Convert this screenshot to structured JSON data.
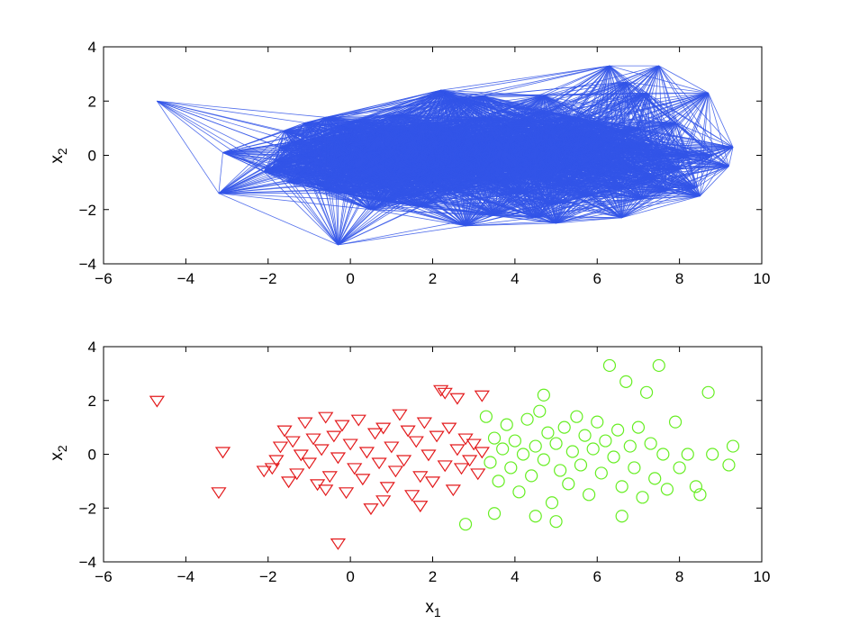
{
  "chart_data": [
    {
      "type": "network",
      "title": "",
      "xlabel": "",
      "ylabel": "x2",
      "ylabel_main": "x",
      "ylabel_sub": "2",
      "xlim": [
        -6,
        10
      ],
      "ylim": [
        -4,
        4
      ],
      "xticks": [
        -6,
        -4,
        -2,
        0,
        2,
        4,
        6,
        8,
        10
      ],
      "yticks": [
        -4,
        -2,
        0,
        2,
        4
      ],
      "xtick_labels": [
        "−6",
        "−4",
        "−2",
        "0",
        "2",
        "4",
        "6",
        "8",
        "10"
      ],
      "ytick_labels": [
        "−4",
        "−2",
        "0",
        "2",
        "4"
      ],
      "edge_color": "#3355e8",
      "grid": false,
      "legend": "none"
    },
    {
      "type": "scatter",
      "title": "",
      "xlabel": "x1",
      "xlabel_main": "x",
      "xlabel_sub": "1",
      "ylabel": "x2",
      "ylabel_main": "x",
      "ylabel_sub": "2",
      "xlim": [
        -6,
        10
      ],
      "ylim": [
        -4,
        4
      ],
      "xticks": [
        -6,
        -4,
        -2,
        0,
        2,
        4,
        6,
        8,
        10
      ],
      "yticks": [
        -4,
        -2,
        0,
        2,
        4
      ],
      "xtick_labels": [
        "−6",
        "−4",
        "−2",
        "0",
        "2",
        "4",
        "6",
        "8",
        "10"
      ],
      "ytick_labels": [
        "−4",
        "−2",
        "0",
        "2",
        "4"
      ],
      "grid": false,
      "legend": "none",
      "series": [
        {
          "marker": "triangle-down",
          "color": "#e31a1c",
          "points": [
            [
              -4.7,
              2.0
            ],
            [
              -3.1,
              0.1
            ],
            [
              -3.2,
              -1.4
            ],
            [
              -2.1,
              -0.6
            ],
            [
              -1.9,
              -0.5
            ],
            [
              -1.8,
              -0.2
            ],
            [
              -1.7,
              0.3
            ],
            [
              -1.6,
              0.9
            ],
            [
              -1.5,
              -1.0
            ],
            [
              -1.4,
              0.5
            ],
            [
              -1.3,
              -0.7
            ],
            [
              -1.2,
              0.0
            ],
            [
              -1.1,
              1.2
            ],
            [
              -1.0,
              -0.3
            ],
            [
              -0.9,
              0.6
            ],
            [
              -0.8,
              -1.1
            ],
            [
              -0.7,
              0.2
            ],
            [
              -0.6,
              1.4
            ],
            [
              -0.5,
              -0.8
            ],
            [
              -0.4,
              0.7
            ],
            [
              -0.3,
              -0.1
            ],
            [
              -0.2,
              1.1
            ],
            [
              -0.1,
              -1.4
            ],
            [
              0.0,
              0.4
            ],
            [
              0.1,
              -0.5
            ],
            [
              0.2,
              1.3
            ],
            [
              0.3,
              -0.9
            ],
            [
              0.4,
              0.1
            ],
            [
              0.5,
              -2.0
            ],
            [
              0.6,
              0.8
            ],
            [
              0.7,
              -0.3
            ],
            [
              0.8,
              1.0
            ],
            [
              0.9,
              -1.2
            ],
            [
              1.0,
              0.3
            ],
            [
              1.1,
              -0.6
            ],
            [
              1.2,
              1.5
            ],
            [
              1.3,
              -0.2
            ],
            [
              1.4,
              0.9
            ],
            [
              1.5,
              -1.5
            ],
            [
              1.6,
              0.5
            ],
            [
              1.7,
              -0.8
            ],
            [
              1.8,
              1.2
            ],
            [
              1.9,
              0.0
            ],
            [
              2.0,
              -1.0
            ],
            [
              2.1,
              0.7
            ],
            [
              2.2,
              2.4
            ],
            [
              2.3,
              -0.4
            ],
            [
              2.4,
              1.0
            ],
            [
              2.5,
              -1.3
            ],
            [
              2.6,
              0.2
            ],
            [
              2.7,
              -0.5
            ],
            [
              2.8,
              0.6
            ],
            [
              2.9,
              -0.2
            ],
            [
              3.0,
              0.4
            ],
            [
              3.1,
              -0.7
            ],
            [
              3.2,
              0.1
            ],
            [
              3.2,
              2.2
            ],
            [
              -0.3,
              -3.3
            ],
            [
              1.7,
              -1.9
            ],
            [
              0.8,
              -1.7
            ],
            [
              -0.6,
              -1.3
            ],
            [
              2.3,
              2.3
            ],
            [
              2.6,
              2.1
            ]
          ]
        },
        {
          "marker": "circle",
          "color": "#66ee22",
          "points": [
            [
              2.8,
              -2.6
            ],
            [
              3.3,
              1.4
            ],
            [
              3.4,
              -0.3
            ],
            [
              3.5,
              0.6
            ],
            [
              3.6,
              -1.0
            ],
            [
              3.7,
              0.2
            ],
            [
              3.8,
              1.1
            ],
            [
              3.9,
              -0.5
            ],
            [
              4.0,
              0.5
            ],
            [
              4.1,
              -1.4
            ],
            [
              4.2,
              0.0
            ],
            [
              4.3,
              1.3
            ],
            [
              4.4,
              -0.8
            ],
            [
              4.5,
              0.3
            ],
            [
              4.6,
              1.6
            ],
            [
              4.7,
              -0.2
            ],
            [
              4.8,
              0.8
            ],
            [
              4.9,
              -1.8
            ],
            [
              5.0,
              0.4
            ],
            [
              5.1,
              -0.6
            ],
            [
              5.2,
              1.0
            ],
            [
              5.3,
              -1.1
            ],
            [
              5.4,
              0.1
            ],
            [
              5.5,
              1.4
            ],
            [
              5.6,
              -0.4
            ],
            [
              5.7,
              0.7
            ],
            [
              5.8,
              -1.5
            ],
            [
              5.9,
              0.2
            ],
            [
              6.0,
              1.2
            ],
            [
              6.1,
              -0.7
            ],
            [
              6.2,
              0.5
            ],
            [
              6.3,
              3.3
            ],
            [
              6.4,
              -0.1
            ],
            [
              6.5,
              0.9
            ],
            [
              6.6,
              -1.2
            ],
            [
              6.7,
              2.7
            ],
            [
              6.8,
              0.3
            ],
            [
              6.9,
              -0.5
            ],
            [
              7.0,
              1.0
            ],
            [
              7.1,
              -1.6
            ],
            [
              7.2,
              2.3
            ],
            [
              7.3,
              0.4
            ],
            [
              7.4,
              -0.9
            ],
            [
              7.5,
              3.3
            ],
            [
              7.6,
              0.0
            ],
            [
              7.7,
              -1.3
            ],
            [
              7.9,
              1.2
            ],
            [
              8.0,
              -0.5
            ],
            [
              8.2,
              0.0
            ],
            [
              8.4,
              -1.2
            ],
            [
              8.7,
              2.3
            ],
            [
              8.8,
              0.0
            ],
            [
              9.2,
              -0.4
            ],
            [
              9.3,
              0.3
            ],
            [
              4.7,
              2.2
            ],
            [
              5.0,
              -2.5
            ],
            [
              4.5,
              -2.3
            ],
            [
              6.6,
              -2.3
            ],
            [
              3.5,
              -2.2
            ],
            [
              8.5,
              -1.5
            ]
          ]
        }
      ]
    }
  ]
}
